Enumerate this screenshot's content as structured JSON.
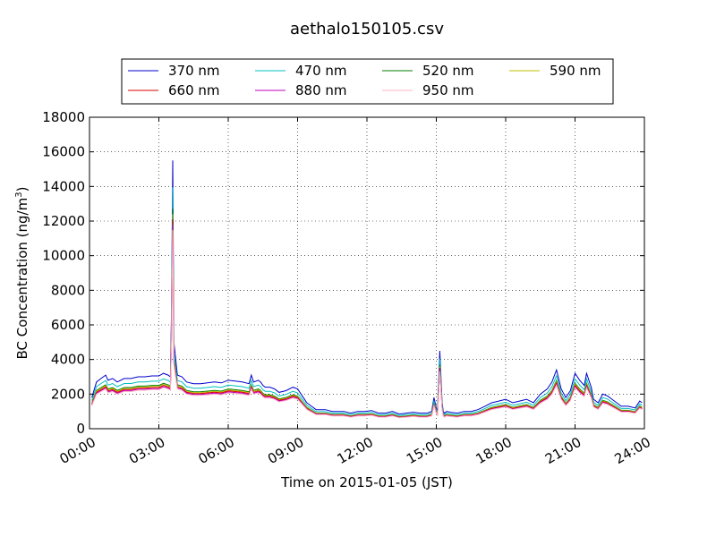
{
  "chart_data": {
    "type": "line",
    "title": "aethalo150105.csv",
    "xlabel": "Time on 2015-01-05 (JST)",
    "ylabel_main": "BC Concentration (ng/m",
    "ylabel_sup": "3",
    "ylabel_close": ")",
    "xlim": [
      0,
      24
    ],
    "ylim": [
      0,
      18000
    ],
    "x_ticks": [
      {
        "value": 0,
        "label": "00:00"
      },
      {
        "value": 3,
        "label": "03:00"
      },
      {
        "value": 6,
        "label": "06:00"
      },
      {
        "value": 9,
        "label": "09:00"
      },
      {
        "value": 12,
        "label": "12:00"
      },
      {
        "value": 15,
        "label": "15:00"
      },
      {
        "value": 18,
        "label": "18:00"
      },
      {
        "value": 21,
        "label": "21:00"
      },
      {
        "value": 24,
        "label": "24:00"
      }
    ],
    "y_ticks": [
      {
        "value": 0,
        "label": "0"
      },
      {
        "value": 2000,
        "label": "2000"
      },
      {
        "value": 4000,
        "label": "4000"
      },
      {
        "value": 6000,
        "label": "6000"
      },
      {
        "value": 8000,
        "label": "8000"
      },
      {
        "value": 10000,
        "label": "10000"
      },
      {
        "value": 12000,
        "label": "12000"
      },
      {
        "value": 14000,
        "label": "14000"
      },
      {
        "value": 16000,
        "label": "16000"
      },
      {
        "value": 18000,
        "label": "18000"
      }
    ],
    "grid": true,
    "legend_position": "top-center",
    "legend_columns": 4,
    "x": [
      0.1,
      0.3,
      0.5,
      0.7,
      0.8,
      1.0,
      1.2,
      1.5,
      1.8,
      2.1,
      2.4,
      2.7,
      3.0,
      3.2,
      3.4,
      3.5,
      3.55,
      3.6,
      3.65,
      3.8,
      4.0,
      4.2,
      4.5,
      4.8,
      5.1,
      5.4,
      5.7,
      6.0,
      6.3,
      6.6,
      6.9,
      7.0,
      7.1,
      7.3,
      7.4,
      7.5,
      7.6,
      7.8,
      8.0,
      8.2,
      8.5,
      8.8,
      9.0,
      9.2,
      9.4,
      9.6,
      9.8,
      10.2,
      10.5,
      10.8,
      11.0,
      11.3,
      11.6,
      11.9,
      12.2,
      12.5,
      12.8,
      13.1,
      13.4,
      13.7,
      14.0,
      14.3,
      14.6,
      14.8,
      14.9,
      15.0,
      15.05,
      15.15,
      15.25,
      15.3,
      15.35,
      15.45,
      15.6,
      15.9,
      16.2,
      16.5,
      16.8,
      17.1,
      17.4,
      17.7,
      18.0,
      18.3,
      18.6,
      18.9,
      19.2,
      19.5,
      19.8,
      20.0,
      20.2,
      20.4,
      20.6,
      20.8,
      21.0,
      21.2,
      21.4,
      21.5,
      21.7,
      21.8,
      22.0,
      22.2,
      22.4,
      22.6,
      22.8,
      23.0,
      23.3,
      23.6,
      23.8,
      23.9
    ],
    "base": [
      1800,
      2700,
      2900,
      3100,
      2800,
      2900,
      2700,
      2900,
      2900,
      3000,
      3000,
      3050,
      3050,
      3200,
      3100,
      3000,
      7000,
      15500,
      5000,
      3100,
      3000,
      2700,
      2600,
      2600,
      2650,
      2700,
      2650,
      2800,
      2750,
      2700,
      2600,
      3100,
      2700,
      2800,
      2700,
      2500,
      2400,
      2400,
      2300,
      2100,
      2200,
      2400,
      2300,
      1900,
      1500,
      1300,
      1100,
      1100,
      1000,
      1000,
      1000,
      900,
      1000,
      1000,
      1050,
      900,
      900,
      1000,
      850,
      900,
      950,
      900,
      900,
      1000,
      1800,
      1200,
      1000,
      4500,
      1500,
      1000,
      900,
      1000,
      950,
      900,
      1000,
      1000,
      1100,
      1300,
      1500,
      1600,
      1700,
      1500,
      1600,
      1700,
      1500,
      2000,
      2300,
      2700,
      3400,
      2300,
      1800,
      2200,
      3200,
      2800,
      2500,
      3200,
      2400,
      1700,
      1500,
      2000,
      1900,
      1700,
      1500,
      1300,
      1300,
      1200,
      1600,
      1500
    ],
    "series": [
      {
        "name": "370 nm",
        "color": "#0000cc",
        "factor": 1.0
      },
      {
        "name": "470 nm",
        "color": "#00bfbf",
        "factor": 0.9
      },
      {
        "name": "520 nm",
        "color": "#007f00",
        "factor": 0.82
      },
      {
        "name": "590 nm",
        "color": "#bfbf00",
        "factor": 0.8
      },
      {
        "name": "660 nm",
        "color": "#dd0000",
        "factor": 0.78
      },
      {
        "name": "880 nm",
        "color": "#bf00bf",
        "factor": 0.76
      },
      {
        "name": "950 nm",
        "color": "#ffb6c1",
        "factor": 0.74
      }
    ]
  }
}
